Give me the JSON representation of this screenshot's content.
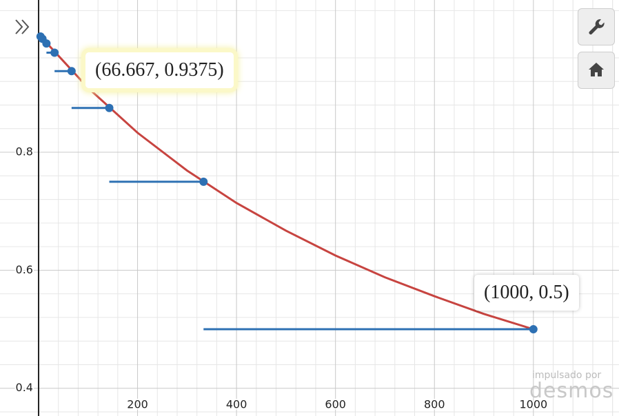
{
  "chart_data": {
    "type": "scatter",
    "xlim": [
      -78,
      1173
    ],
    "ylim": [
      0.353,
      1.058
    ],
    "xticks": [
      200,
      400,
      600,
      800,
      1000
    ],
    "yticks": [
      0.4,
      0.6,
      0.8
    ],
    "grid": true,
    "curve": {
      "color": "#c74440",
      "x": [
        0,
        100,
        200,
        300,
        400,
        500,
        600,
        700,
        800,
        900,
        1000
      ],
      "y": [
        1,
        0.909,
        0.833,
        0.769,
        0.714,
        0.667,
        0.625,
        0.588,
        0.556,
        0.526,
        0.5
      ]
    },
    "points": {
      "color": "#2d70b3",
      "x": [
        1000,
        333.333,
        142.857,
        66.667,
        32.258,
        15.873,
        7.874,
        3.922
      ],
      "y": [
        0.5,
        0.75,
        0.875,
        0.9375,
        0.96875,
        0.984375,
        0.9921875,
        0.99609375
      ]
    },
    "segments": {
      "color": "#2d70b3",
      "x_start": [
        333.333,
        142.857,
        66.667,
        32.258,
        15.873,
        7.874,
        3.922,
        1.957
      ],
      "x_end": [
        1000,
        333.333,
        142.857,
        66.667,
        32.258,
        15.873,
        7.874,
        3.922
      ],
      "y": [
        0.5,
        0.75,
        0.875,
        0.9375,
        0.96875,
        0.984375,
        0.9921875,
        0.99609375
      ]
    },
    "annotations": [
      {
        "text": "(66.667, 0.9375)"
      },
      {
        "text": "(1000, 0.5)"
      }
    ],
    "watermark": {
      "line1": "impulsado por",
      "line2": "desmos"
    }
  }
}
